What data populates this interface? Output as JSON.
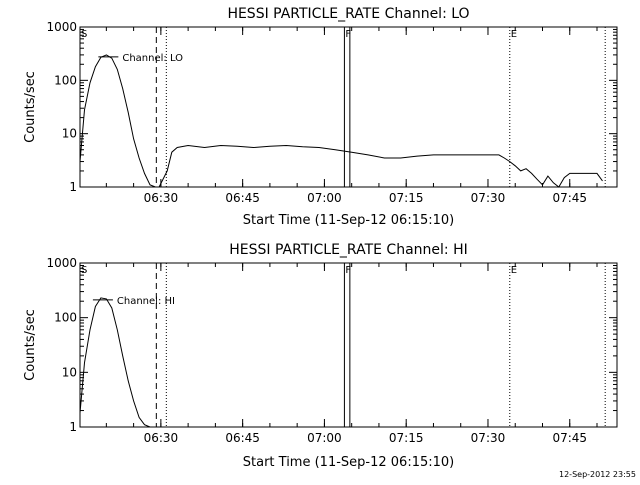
{
  "footer_timestamp": "12-Sep-2012 23:55",
  "chart_data": [
    {
      "type": "line",
      "title": "HESSI PARTICLE_RATE Channel: LO",
      "xlabel": "Start Time (11-Sep-12 06:15:10)",
      "ylabel": "Counts/sec",
      "y_scale": "log",
      "ylim": [
        1,
        1000
      ],
      "xlim": [
        "06:15:10",
        "07:53:40"
      ],
      "x_ticks": [
        "06:30",
        "06:45",
        "07:00",
        "07:15",
        "07:30",
        "07:45"
      ],
      "y_ticks": [
        "1",
        "10",
        "100",
        "1000"
      ],
      "legend_label": "Channel: LO",
      "markers": [
        {
          "label": "S",
          "time": "06:15:10",
          "style": "dotted"
        },
        {
          "label": "",
          "time": "06:29:10",
          "style": "dashed"
        },
        {
          "label": "",
          "time": "06:31:00",
          "style": "dotted"
        },
        {
          "label": "F",
          "time": "07:03:40",
          "style": "solid"
        },
        {
          "label": "",
          "time": "07:04:40",
          "style": "solid"
        },
        {
          "label": "E",
          "time": "07:34:00",
          "style": "dotted"
        },
        {
          "label": "",
          "time": "07:51:30",
          "style": "dotted"
        }
      ],
      "series": [
        {
          "x": [
            "06:15:10",
            "06:16:00",
            "06:17:00",
            "06:18:00",
            "06:19:00",
            "06:20:00",
            "06:21:00",
            "06:22:00",
            "06:23:00",
            "06:24:00",
            "06:25:00",
            "06:26:00",
            "06:27:00",
            "06:28:00",
            "06:29:00",
            "06:29:40",
            "06:31:10",
            "06:32:00",
            "06:33:00",
            "06:35:00",
            "06:38:00",
            "06:41:00",
            "06:44:00",
            "06:47:00",
            "06:50:00",
            "06:53:00",
            "06:56:00",
            "06:59:00",
            "07:02:00",
            "07:05:00",
            "07:08:00",
            "07:11:00",
            "07:14:00",
            "07:17:00",
            "07:20:00",
            "07:23:00",
            "07:26:00",
            "07:29:00",
            "07:32:00",
            "07:33:00",
            "07:34:00",
            "07:35:00",
            "07:36:00",
            "07:37:00",
            "07:38:00",
            "07:39:00",
            "07:40:00",
            "07:41:00",
            "07:42:00",
            "07:43:00",
            "07:44:00",
            "07:45:00",
            "07:47:00",
            "07:49:00",
            "07:50:00",
            "07:51:00"
          ],
          "values": [
            3,
            28,
            90,
            180,
            270,
            300,
            260,
            160,
            70,
            25,
            8,
            3.5,
            1.8,
            1.1,
            1,
            1,
            2,
            4.5,
            5.5,
            6,
            5.5,
            6,
            5.8,
            5.5,
            5.8,
            6,
            5.7,
            5.5,
            5,
            4.5,
            4,
            3.5,
            3.5,
            3.8,
            4,
            4,
            4,
            4,
            4,
            3.5,
            3,
            2.5,
            2,
            2.2,
            1.8,
            1.4,
            1.1,
            1.6,
            1.2,
            1,
            1.5,
            1.8,
            1.8,
            1.8,
            1.8,
            1.3
          ]
        }
      ]
    },
    {
      "type": "line",
      "title": "HESSI PARTICLE_RATE Channel: HI",
      "xlabel": "Start Time (11-Sep-12 06:15:10)",
      "ylabel": "Counts/sec",
      "y_scale": "log",
      "ylim": [
        1,
        1000
      ],
      "xlim": [
        "06:15:10",
        "07:53:40"
      ],
      "x_ticks": [
        "06:30",
        "06:45",
        "07:00",
        "07:15",
        "07:30",
        "07:45"
      ],
      "y_ticks": [
        "1",
        "10",
        "100",
        "1000"
      ],
      "legend_label": "Channel: HI",
      "markers": [
        {
          "label": "S",
          "time": "06:15:10",
          "style": "dotted"
        },
        {
          "label": "",
          "time": "06:29:10",
          "style": "dashed"
        },
        {
          "label": "",
          "time": "06:31:00",
          "style": "dotted"
        },
        {
          "label": "F",
          "time": "07:03:40",
          "style": "solid"
        },
        {
          "label": "",
          "time": "07:04:40",
          "style": "solid"
        },
        {
          "label": "E",
          "time": "07:34:00",
          "style": "dotted"
        },
        {
          "label": "",
          "time": "07:51:30",
          "style": "dotted"
        }
      ],
      "series": [
        {
          "x": [
            "06:15:10",
            "06:16:00",
            "06:17:00",
            "06:18:00",
            "06:19:00",
            "06:20:00",
            "06:21:00",
            "06:22:00",
            "06:23:00",
            "06:24:00",
            "06:25:00",
            "06:26:00",
            "06:27:00",
            "06:28:00"
          ],
          "values": [
            1.8,
            15,
            60,
            160,
            230,
            220,
            150,
            60,
            20,
            7,
            3,
            1.5,
            1.1,
            1
          ]
        }
      ]
    }
  ]
}
